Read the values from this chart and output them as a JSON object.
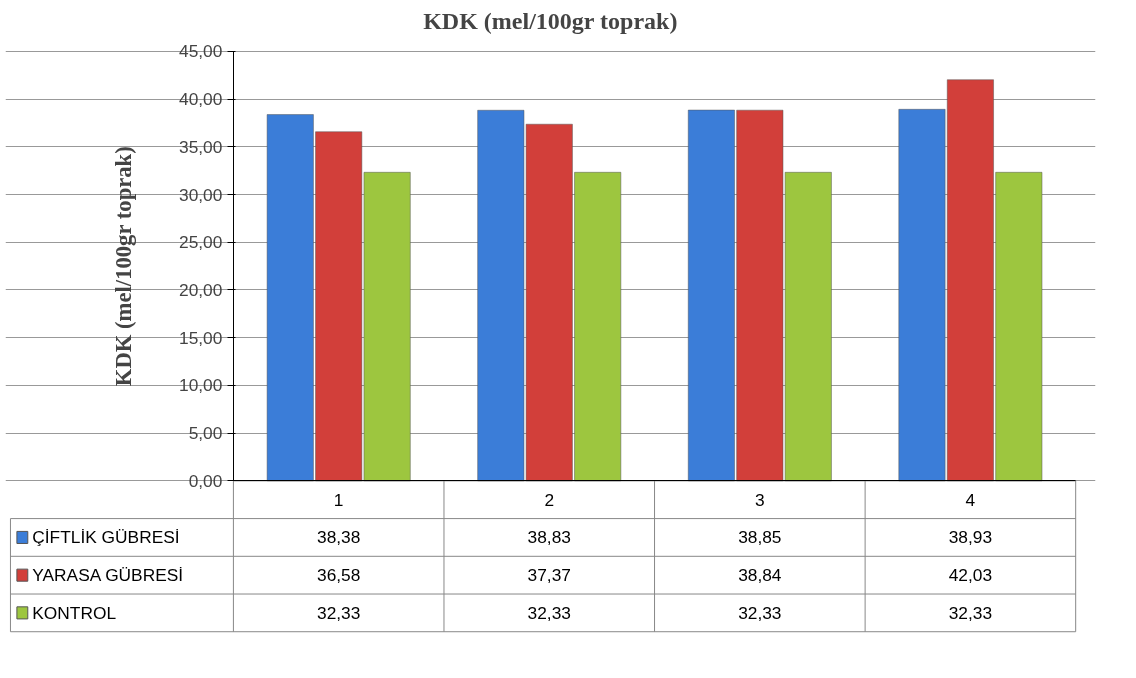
{
  "chart_data": {
    "type": "bar",
    "title": "KDK (mel/100gr toprak)",
    "ylabel": "KDK (mel/100gr toprak)",
    "categories": [
      "1",
      "2",
      "3",
      "4"
    ],
    "series": [
      {
        "name": "ÇİFTLİK GÜBRESİ",
        "color": "#3b7dd8",
        "values": [
          38.38,
          38.83,
          38.85,
          38.93
        ],
        "value_labels": [
          "38,38",
          "38,83",
          "38,85",
          "38,93"
        ]
      },
      {
        "name": "YARASA GÜBRESİ",
        "color": "#d23f3a",
        "values": [
          36.58,
          37.37,
          38.84,
          42.03
        ],
        "value_labels": [
          "36,58",
          "37,37",
          "38,84",
          "42,03"
        ]
      },
      {
        "name": "KONTROL",
        "color": "#9dc63f",
        "values": [
          32.33,
          32.33,
          32.33,
          32.33
        ],
        "value_labels": [
          "32,33",
          "32,33",
          "32,33",
          "32,33"
        ]
      }
    ],
    "ylim": [
      0,
      45
    ],
    "yticks": [
      {
        "value": 0,
        "label": "0,00"
      },
      {
        "value": 5,
        "label": "5,00"
      },
      {
        "value": 10,
        "label": "10,00"
      },
      {
        "value": 15,
        "label": "15,00"
      },
      {
        "value": 20,
        "label": "20,00"
      },
      {
        "value": 25,
        "label": "25,00"
      },
      {
        "value": 30,
        "label": "30,00"
      },
      {
        "value": 35,
        "label": "35,00"
      },
      {
        "value": 40,
        "label": "40,00"
      },
      {
        "value": 45,
        "label": "45,00"
      }
    ],
    "grid": "y",
    "legend": "bottom"
  }
}
